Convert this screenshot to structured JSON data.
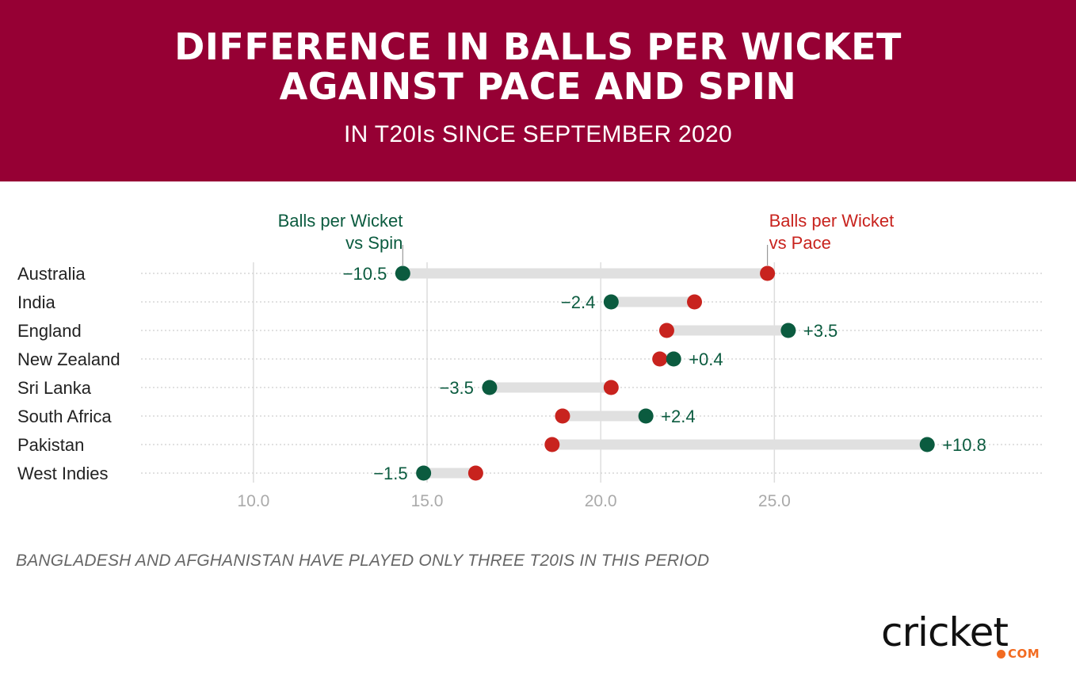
{
  "header": {
    "title": "DIFFERENCE IN BALLS PER WICKET\nAGAINST PACE AND SPIN",
    "subtitle": "IN T20Is SINCE SEPTEMBER 2020"
  },
  "footnote": "BANGLADESH AND AFGHANISTAN HAVE PLAYED ONLY THREE T20IS IN THIS PERIOD",
  "logo": {
    "word": "cricket",
    "suffix": "COM"
  },
  "colors": {
    "header_bg": "#960034",
    "spin": "#0b5b3f",
    "pace": "#c8231e",
    "connector": "#e0e0e0",
    "grid": "#dddddd",
    "tick_text": "#aaaaaa",
    "label_text": "#222222",
    "logo_accent": "#f26b21"
  },
  "chart_data": {
    "type": "dumbbell",
    "xlim": [
      5.6,
      31.7
    ],
    "x_ticks": [
      10.0,
      15.0,
      20.0,
      25.0
    ],
    "x_tick_labels": [
      "10.0",
      "15.0",
      "20.0",
      "25.0"
    ],
    "grid": true,
    "series": [
      {
        "key": "spin",
        "name": "Balls per Wicket\nvs Spin"
      },
      {
        "key": "pace",
        "name": "Balls per Wicket\nvs Pace"
      }
    ],
    "categories": [
      "Australia",
      "India",
      "England",
      "New Zealand",
      "Sri Lanka",
      "South Africa",
      "Pakistan",
      "West Indies"
    ],
    "spin": [
      14.3,
      20.3,
      25.4,
      22.1,
      16.8,
      21.3,
      29.4,
      14.9
    ],
    "pace": [
      24.8,
      22.7,
      21.9,
      21.7,
      20.3,
      18.9,
      18.6,
      16.4
    ],
    "difference_labels": [
      "−10.5",
      "−2.4",
      "+3.5",
      "+0.4",
      "−3.5",
      "+2.4",
      "+10.8",
      "−1.5"
    ]
  }
}
